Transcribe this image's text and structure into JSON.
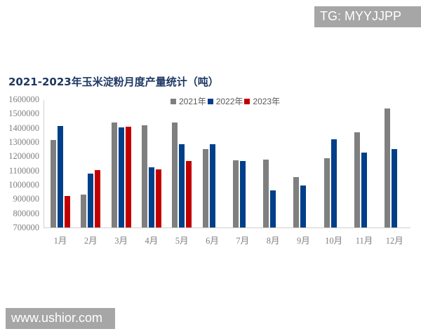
{
  "watermarks": {
    "top_right": "TG: MYYJJPP",
    "bottom_left": "www.ushior.com"
  },
  "colors": {
    "2021": "#7f7f7f",
    "2022": "#003f8a",
    "2023": "#c00000",
    "title": "#1f3864"
  },
  "chart_data": {
    "type": "bar",
    "title": "2021-2023年玉米淀粉月度产量统计（吨）",
    "xlabel": "",
    "ylabel": "",
    "ylim": [
      700000,
      1600000
    ],
    "yticks": [
      "1600000",
      "1500000",
      "1400000",
      "1300000",
      "1200000",
      "1100000",
      "1000000",
      "900000",
      "800000",
      "700000"
    ],
    "legend_position": "top",
    "grid": false,
    "categories": [
      "1月",
      "2月",
      "3月",
      "4月",
      "5月",
      "6月",
      "7月",
      "8月",
      "9月",
      "10月",
      "11月",
      "12月"
    ],
    "series": [
      {
        "name": "2021年",
        "color": "#7f7f7f",
        "values": [
          1320000,
          937000,
          1442000,
          1423000,
          1442000,
          1257000,
          1178000,
          1182000,
          1057000,
          1194000,
          1372000,
          1541000
        ]
      },
      {
        "name": "2022年",
        "color": "#003f8a",
        "values": [
          1420000,
          1085000,
          1410000,
          1128000,
          1290000,
          1290000,
          1172000,
          966000,
          1001000,
          1326000,
          1230000,
          1257000
        ]
      },
      {
        "name": "2023年",
        "color": "#c00000",
        "values": [
          927000,
          1108000,
          1415000,
          1112000,
          1170000,
          null,
          null,
          null,
          null,
          null,
          null,
          null
        ]
      }
    ]
  }
}
